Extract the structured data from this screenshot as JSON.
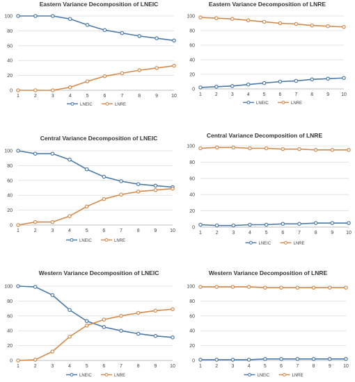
{
  "colors": {
    "LNEIC": "#4a78a8",
    "LNRE": "#d4894a",
    "grid": "#dcdcdc",
    "text": "#404040"
  },
  "chart_data": [
    {
      "type": "line",
      "title": "Eastern Variance Decomposition of LNEIC",
      "x": [
        1,
        2,
        3,
        4,
        5,
        6,
        7,
        8,
        9,
        10
      ],
      "ylim": [
        0,
        100
      ],
      "yticks": [
        0,
        20,
        40,
        60,
        80,
        100
      ],
      "grid": true,
      "legend": "bottom",
      "series": [
        {
          "name": "LNEIC",
          "values": [
            100,
            100,
            100,
            96,
            88,
            81,
            77,
            73,
            70,
            67
          ]
        },
        {
          "name": "LNRE",
          "values": [
            0,
            0,
            0,
            4,
            12,
            19,
            23,
            27,
            30,
            33
          ]
        }
      ]
    },
    {
      "type": "line",
      "title": "Eastern Variance Decomposition of LNRE",
      "x": [
        1,
        2,
        3,
        4,
        5,
        6,
        7,
        8,
        9,
        10
      ],
      "ylim": [
        0,
        100
      ],
      "yticks": [
        0,
        20,
        40,
        60,
        80,
        100
      ],
      "grid": true,
      "legend": "bottom",
      "series": [
        {
          "name": "LNEIC",
          "values": [
            2,
            3,
            4,
            6,
            8,
            10,
            11,
            13,
            14,
            15
          ]
        },
        {
          "name": "LNRE",
          "values": [
            98,
            97,
            96,
            94,
            92,
            90,
            89,
            87,
            86,
            85
          ]
        }
      ]
    },
    {
      "type": "line",
      "title": "Central Variance Decomposition of LNEIC",
      "x": [
        1,
        2,
        3,
        4,
        5,
        6,
        7,
        8,
        9,
        10
      ],
      "ylim": [
        0,
        100
      ],
      "yticks": [
        0,
        20,
        40,
        60,
        80,
        100
      ],
      "grid": true,
      "legend": "bottom",
      "series": [
        {
          "name": "LNEIC",
          "values": [
            100,
            96,
            96,
            88,
            75,
            65,
            59,
            55,
            53,
            51
          ]
        },
        {
          "name": "LNRE",
          "values": [
            0,
            4,
            4,
            12,
            25,
            35,
            41,
            45,
            47,
            49
          ]
        }
      ]
    },
    {
      "type": "line",
      "title": "Central Variance Decomposition of LNRE",
      "x": [
        1,
        2,
        3,
        4,
        5,
        6,
        7,
        8,
        9,
        10
      ],
      "ylim": [
        0,
        100
      ],
      "yticks": [
        0,
        20,
        40,
        60,
        80,
        100
      ],
      "grid": true,
      "legend": "bottom",
      "series": [
        {
          "name": "LNEIC",
          "values": [
            3,
            2,
            2,
            3,
            3,
            4,
            4,
            5,
            5,
            5
          ]
        },
        {
          "name": "LNRE",
          "values": [
            97,
            98,
            98,
            97,
            97,
            96,
            96,
            95,
            95,
            95
          ]
        }
      ]
    },
    {
      "type": "line",
      "title": "Western Variance Decomposition of LNEIC",
      "x": [
        1,
        2,
        3,
        4,
        5,
        6,
        7,
        8,
        9,
        10
      ],
      "ylim": [
        0,
        100
      ],
      "yticks": [
        0,
        20,
        40,
        60,
        80,
        100
      ],
      "grid": true,
      "legend": "bottom",
      "series": [
        {
          "name": "LNEIC",
          "values": [
            100,
            99,
            88,
            68,
            53,
            45,
            40,
            36,
            33,
            31
          ]
        },
        {
          "name": "LNRE",
          "values": [
            0,
            1,
            12,
            32,
            47,
            55,
            60,
            64,
            67,
            69
          ]
        }
      ]
    },
    {
      "type": "line",
      "title": "Western Variance Decomposition of LNRE",
      "x": [
        1,
        2,
        3,
        4,
        5,
        6,
        7,
        8,
        9,
        10
      ],
      "ylim": [
        0,
        100
      ],
      "yticks": [
        0,
        20,
        40,
        60,
        80,
        100
      ],
      "grid": true,
      "legend": "bottom",
      "series": [
        {
          "name": "LNEIC",
          "values": [
            1,
            1,
            1,
            1,
            2,
            2,
            2,
            2,
            2,
            2
          ]
        },
        {
          "name": "LNRE",
          "values": [
            99,
            99,
            99,
            99,
            98,
            98,
            98,
            98,
            98,
            98
          ]
        }
      ]
    }
  ]
}
